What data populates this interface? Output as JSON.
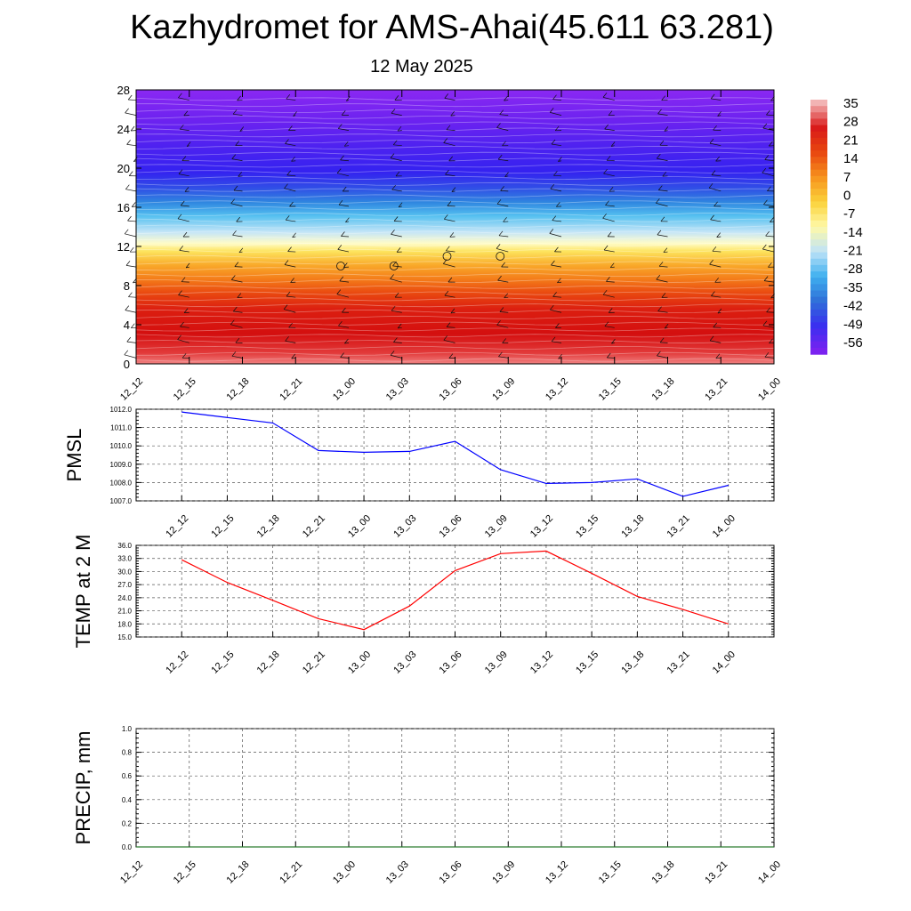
{
  "header": {
    "title": "Kazhydromet for AMS-Ahai(45.611 63.281)",
    "subtitle": "12 May 2025"
  },
  "chart_data": [
    {
      "type": "heatmap",
      "id": "vertical-profile",
      "ylim": [
        0,
        28
      ],
      "yticks": [
        "0",
        "4",
        "8",
        "12",
        "16",
        "20",
        "24",
        "28"
      ],
      "xticks": [
        "12_12",
        "12_15",
        "12_18",
        "12_21",
        "13_00",
        "13_03",
        "13_06",
        "13_09",
        "13_12",
        "13_15",
        "13_18",
        "13_21",
        "14_00"
      ],
      "colorbar": {
        "labels": [
          "35",
          "28",
          "21",
          "14",
          "7",
          "0",
          "-7",
          "-14",
          "-21",
          "-28",
          "-35",
          "-42",
          "-49",
          "-56"
        ],
        "colors": [
          "#f2b3b3",
          "#d91a1a",
          "#e8470f",
          "#f7931e",
          "#fbd23a",
          "#fff9a8",
          "#bfe3f7",
          "#3fb0ef",
          "#2f6fd8",
          "#3a2ff0",
          "#7a22f0"
        ]
      },
      "calm_markers": [
        "13_00",
        "13_03",
        "13_06",
        "13_09"
      ]
    },
    {
      "type": "line",
      "id": "pmsl",
      "ylabel": "PMSL",
      "ylim": [
        1007.0,
        1012.0
      ],
      "yticks": [
        "1007.0",
        "1008.0",
        "1009.0",
        "1010.0",
        "1011.0",
        "1012.0"
      ],
      "categories": [
        "12_12",
        "12_15",
        "12_18",
        "12_21",
        "13_00",
        "13_03",
        "13_06",
        "13_09",
        "13_12",
        "13_15",
        "13_18",
        "13_21",
        "14_00"
      ],
      "values": [
        1011.85,
        1011.55,
        1011.25,
        1009.75,
        1009.65,
        1009.7,
        1010.25,
        1008.7,
        1007.95,
        1008.0,
        1008.2,
        1007.25,
        1007.85
      ],
      "color": "#0000ff"
    },
    {
      "type": "line",
      "id": "temp",
      "ylabel": "TEMP at 2 M",
      "ylim": [
        15.0,
        36.0
      ],
      "yticks": [
        "15.0",
        "18.0",
        "21.0",
        "24.0",
        "27.0",
        "30.0",
        "33.0",
        "36.0"
      ],
      "categories": [
        "12_12",
        "12_15",
        "12_18",
        "12_21",
        "13_00",
        "13_03",
        "13_06",
        "13_09",
        "13_12",
        "13_15",
        "13_18",
        "13_21",
        "14_00"
      ],
      "values": [
        32.7,
        27.5,
        23.4,
        19.2,
        16.7,
        22.1,
        30.2,
        34.1,
        34.7,
        29.6,
        24.3,
        21.3,
        18.0
      ],
      "color": "#ff0000"
    },
    {
      "type": "line",
      "id": "precip",
      "ylabel": "PRECIP, mm",
      "ylim": [
        0.0,
        1.0
      ],
      "yticks": [
        "0.0",
        "0.2",
        "0.4",
        "0.6",
        "0.8",
        "1.0"
      ],
      "categories": [
        "12_12",
        "12_15",
        "12_18",
        "12_21",
        "13_00",
        "13_03",
        "13_06",
        "13_09",
        "13_12",
        "13_15",
        "13_18",
        "13_21",
        "14_00"
      ],
      "values": [
        0,
        0,
        0,
        0,
        0,
        0,
        0,
        0,
        0,
        0,
        0,
        0,
        0
      ],
      "color": "#2e7d32"
    }
  ]
}
